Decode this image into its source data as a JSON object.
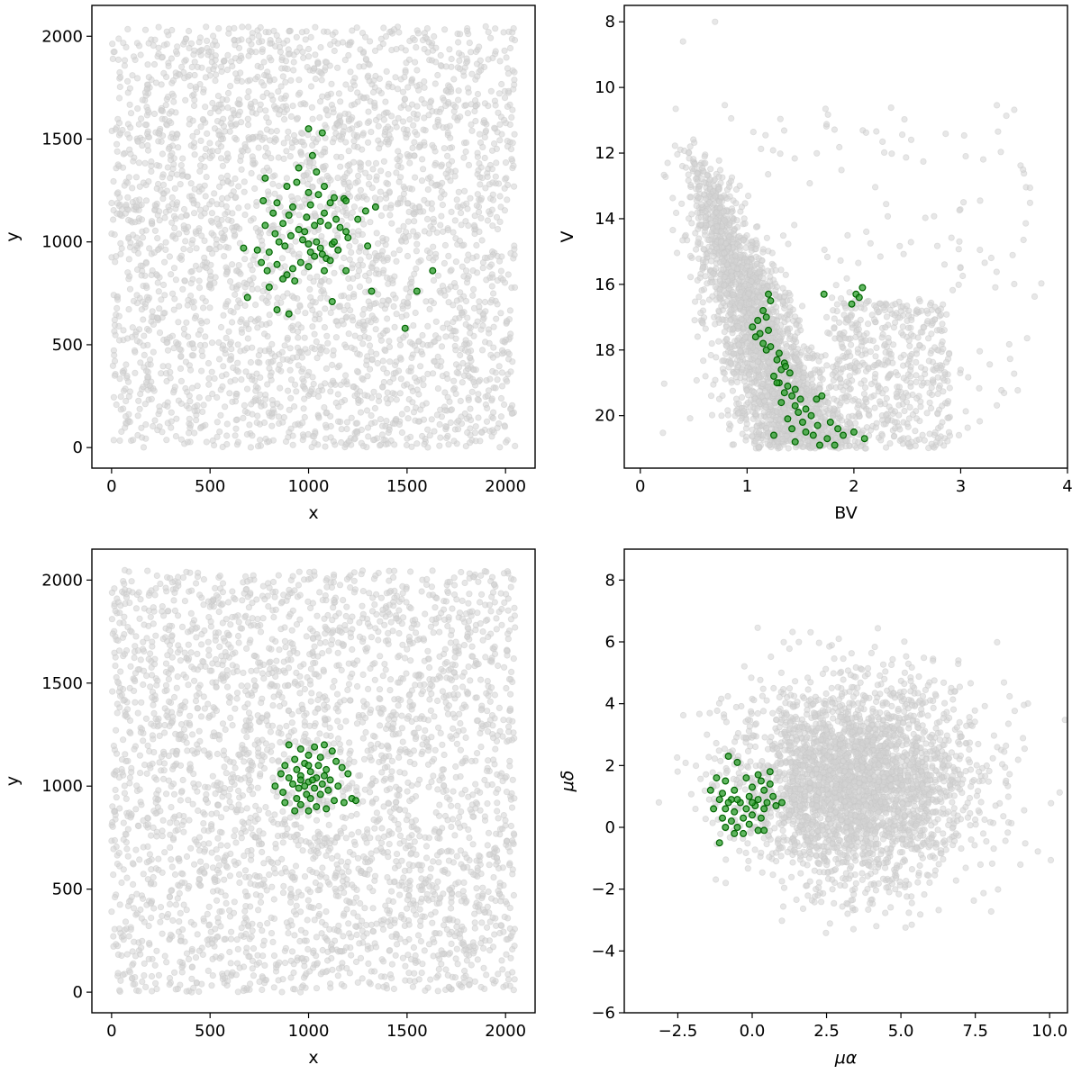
{
  "colors": {
    "background_points": "#d3d3d3",
    "members": "#008000"
  },
  "chart_data": [
    {
      "type": "scatter",
      "xlabel": "x",
      "ylabel": "y",
      "xlim": [
        -100,
        2150
      ],
      "ylim": [
        -100,
        2150
      ],
      "invert_y": false,
      "xticks": [
        0,
        500,
        1000,
        1500,
        2000
      ],
      "yticks": [
        0,
        500,
        1000,
        1500,
        2000
      ],
      "xtick_labels": [
        "0",
        "500",
        "1000",
        "1500",
        "2000"
      ],
      "ytick_labels": [
        "0",
        "500",
        "1000",
        "1500",
        "2000"
      ],
      "background": {
        "count": 3000,
        "distribution": "uniform",
        "x_range": [
          0,
          2048
        ],
        "y_range": [
          0,
          2048
        ]
      },
      "members": [
        [
          1000,
          1550
        ],
        [
          1070,
          1530
        ],
        [
          1020,
          1420
        ],
        [
          950,
          1360
        ],
        [
          1040,
          1340
        ],
        [
          1080,
          1270
        ],
        [
          940,
          1290
        ],
        [
          780,
          1310
        ],
        [
          890,
          1270
        ],
        [
          1000,
          1240
        ],
        [
          1050,
          1230
        ],
        [
          1130,
          1215
        ],
        [
          1180,
          1210
        ],
        [
          1190,
          1200
        ],
        [
          770,
          1200
        ],
        [
          840,
          1190
        ],
        [
          920,
          1170
        ],
        [
          1010,
          1180
        ],
        [
          1110,
          1190
        ],
        [
          1340,
          1170
        ],
        [
          1290,
          1150
        ],
        [
          820,
          1140
        ],
        [
          900,
          1130
        ],
        [
          990,
          1120
        ],
        [
          1060,
          1100
        ],
        [
          1140,
          1110
        ],
        [
          1250,
          1110
        ],
        [
          780,
          1080
        ],
        [
          870,
          1090
        ],
        [
          950,
          1060
        ],
        [
          1030,
          1080
        ],
        [
          1100,
          1080
        ],
        [
          1160,
          1070
        ],
        [
          1190,
          1050
        ],
        [
          830,
          1040
        ],
        [
          910,
          1030
        ],
        [
          970,
          1010
        ],
        [
          1040,
          1000
        ],
        [
          1120,
          990
        ],
        [
          1200,
          1020
        ],
        [
          1300,
          980
        ],
        [
          670,
          970
        ],
        [
          740,
          960
        ],
        [
          800,
          950
        ],
        [
          880,
          980
        ],
        [
          1000,
          990
        ],
        [
          1060,
          970
        ],
        [
          1150,
          960
        ],
        [
          1010,
          950
        ],
        [
          1070,
          940
        ],
        [
          1090,
          920
        ],
        [
          1110,
          910
        ],
        [
          760,
          900
        ],
        [
          840,
          890
        ],
        [
          920,
          870
        ],
        [
          1000,
          880
        ],
        [
          1080,
          860
        ],
        [
          1190,
          860
        ],
        [
          790,
          860
        ],
        [
          890,
          840
        ],
        [
          870,
          820
        ],
        [
          930,
          810
        ],
        [
          800,
          780
        ],
        [
          1320,
          760
        ],
        [
          1550,
          760
        ],
        [
          1630,
          860
        ],
        [
          690,
          730
        ],
        [
          1120,
          710
        ],
        [
          840,
          670
        ],
        [
          900,
          650
        ],
        [
          1490,
          580
        ],
        [
          960,
          900
        ],
        [
          1030,
          930
        ],
        [
          1130,
          1000
        ],
        [
          850,
          1000
        ],
        [
          1080,
          1140
        ],
        [
          980,
          1050
        ]
      ]
    },
    {
      "type": "scatter",
      "xlabel": "BV",
      "ylabel": "V",
      "xlim": [
        -0.15,
        4.0
      ],
      "ylim": [
        21.6,
        7.5
      ],
      "invert_y": true,
      "xticks": [
        0,
        1,
        2,
        3,
        4
      ],
      "yticks": [
        8,
        10,
        12,
        14,
        16,
        18,
        20
      ],
      "xtick_labels": [
        "0",
        "1",
        "2",
        "3",
        "4"
      ],
      "ytick_labels": [
        "8",
        "10",
        "12",
        "14",
        "16",
        "18",
        "20"
      ],
      "background": {
        "count": 3000,
        "distribution": "main-sequence band with red-giant scatter",
        "x_range": [
          0.1,
          3.8
        ],
        "y_range": [
          8.0,
          21.0
        ]
      },
      "members": [
        [
          1.2,
          16.3
        ],
        [
          1.22,
          16.5
        ],
        [
          1.15,
          16.8
        ],
        [
          1.18,
          17.0
        ],
        [
          1.1,
          17.1
        ],
        [
          1.05,
          17.3
        ],
        [
          1.12,
          17.5
        ],
        [
          1.2,
          17.4
        ],
        [
          1.08,
          17.6
        ],
        [
          1.15,
          17.8
        ],
        [
          1.18,
          18.0
        ],
        [
          1.22,
          17.9
        ],
        [
          1.3,
          18.1
        ],
        [
          1.28,
          18.3
        ],
        [
          1.35,
          18.4
        ],
        [
          1.32,
          18.6
        ],
        [
          1.4,
          18.7
        ],
        [
          1.25,
          18.8
        ],
        [
          1.3,
          19.0
        ],
        [
          1.38,
          19.1
        ],
        [
          1.45,
          19.2
        ],
        [
          1.35,
          19.3
        ],
        [
          1.42,
          19.4
        ],
        [
          1.5,
          19.5
        ],
        [
          1.32,
          19.6
        ],
        [
          1.45,
          19.7
        ],
        [
          1.55,
          19.8
        ],
        [
          1.65,
          19.5
        ],
        [
          1.7,
          19.4
        ],
        [
          1.48,
          19.9
        ],
        [
          1.6,
          20.0
        ],
        [
          1.38,
          20.1
        ],
        [
          1.52,
          20.2
        ],
        [
          1.66,
          20.3
        ],
        [
          1.78,
          20.2
        ],
        [
          1.85,
          20.4
        ],
        [
          1.42,
          20.4
        ],
        [
          1.55,
          20.5
        ],
        [
          1.62,
          20.6
        ],
        [
          1.75,
          20.7
        ],
        [
          1.9,
          20.6
        ],
        [
          2.0,
          20.5
        ],
        [
          2.1,
          20.7
        ],
        [
          1.45,
          20.8
        ],
        [
          1.68,
          20.9
        ],
        [
          1.82,
          20.9
        ],
        [
          1.25,
          20.6
        ],
        [
          1.72,
          16.3
        ],
        [
          1.98,
          16.6
        ],
        [
          2.02,
          16.3
        ],
        [
          2.08,
          16.1
        ],
        [
          2.05,
          16.4
        ],
        [
          1.28,
          19.0
        ],
        [
          1.36,
          18.5
        ]
      ]
    },
    {
      "type": "scatter",
      "xlabel": "x",
      "ylabel": "y",
      "xlim": [
        -100,
        2150
      ],
      "ylim": [
        -100,
        2150
      ],
      "invert_y": false,
      "xticks": [
        0,
        500,
        1000,
        1500,
        2000
      ],
      "yticks": [
        0,
        500,
        1000,
        1500,
        2000
      ],
      "xtick_labels": [
        "0",
        "500",
        "1000",
        "1500",
        "2000"
      ],
      "ytick_labels": [
        "0",
        "500",
        "1000",
        "1500",
        "2000"
      ],
      "background": {
        "count": 3000,
        "distribution": "uniform",
        "x_range": [
          0,
          2048
        ],
        "y_range": [
          0,
          2048
        ]
      },
      "members": [
        [
          900,
          1200
        ],
        [
          960,
          1180
        ],
        [
          1030,
          1190
        ],
        [
          1080,
          1200
        ],
        [
          1120,
          1170
        ],
        [
          1000,
          1150
        ],
        [
          930,
          1130
        ],
        [
          1060,
          1140
        ],
        [
          1140,
          1120
        ],
        [
          880,
          1100
        ],
        [
          980,
          1110
        ],
        [
          1050,
          1100
        ],
        [
          1170,
          1090
        ],
        [
          940,
          1080
        ],
        [
          1010,
          1070
        ],
        [
          1090,
          1080
        ],
        [
          1200,
          1060
        ],
        [
          860,
          1060
        ],
        [
          900,
          1040
        ],
        [
          960,
          1050
        ],
        [
          1040,
          1040
        ],
        [
          1110,
          1030
        ],
        [
          1000,
          1020
        ],
        [
          1070,
          1010
        ],
        [
          1150,
          1000
        ],
        [
          920,
          1010
        ],
        [
          830,
          1000
        ],
        [
          950,
          990
        ],
        [
          1030,
          990
        ],
        [
          1100,
          980
        ],
        [
          870,
          970
        ],
        [
          990,
          960
        ],
        [
          1060,
          960
        ],
        [
          1220,
          940
        ],
        [
          1240,
          930
        ],
        [
          940,
          940
        ],
        [
          1010,
          940
        ],
        [
          1130,
          930
        ],
        [
          1180,
          920
        ],
        [
          880,
          920
        ],
        [
          960,
          910
        ],
        [
          1040,
          900
        ],
        [
          1090,
          890
        ],
        [
          930,
          880
        ],
        [
          1000,
          880
        ],
        [
          980,
          1000
        ],
        [
          1020,
          1030
        ],
        [
          1080,
          1050
        ],
        [
          960,
          1030
        ],
        [
          1000,
          1100
        ]
      ]
    },
    {
      "type": "scatter",
      "xlabel": "μα",
      "ylabel": "μδ",
      "xlim": [
        -4.3,
        10.6
      ],
      "ylim": [
        -6.0,
        9.0
      ],
      "invert_y": false,
      "xticks": [
        -2.5,
        0.0,
        2.5,
        5.0,
        7.5,
        10.0
      ],
      "yticks": [
        -6,
        -4,
        -2,
        0,
        2,
        4,
        6,
        8
      ],
      "xtick_labels": [
        "−2.5",
        "0.0",
        "2.5",
        "5.0",
        "7.5",
        "10.0"
      ],
      "ytick_labels": [
        "−6",
        "−4",
        "−2",
        "0",
        "2",
        "4",
        "6",
        "8"
      ],
      "background": {
        "count": 3000,
        "distribution": "gaussian",
        "center": [
          3.5,
          1.5
        ],
        "sigma": [
          2.0,
          1.6
        ]
      },
      "members": [
        [
          -0.8,
          2.3
        ],
        [
          -0.5,
          2.1
        ],
        [
          0.2,
          1.7
        ],
        [
          0.6,
          1.8
        ],
        [
          -1.2,
          1.6
        ],
        [
          -0.9,
          1.5
        ],
        [
          -0.2,
          1.6
        ],
        [
          0.3,
          1.5
        ],
        [
          -1.4,
          1.2
        ],
        [
          -1.0,
          1.1
        ],
        [
          -0.6,
          1.2
        ],
        [
          0.0,
          1.3
        ],
        [
          0.4,
          1.2
        ],
        [
          0.7,
          1.0
        ],
        [
          -1.1,
          0.9
        ],
        [
          -0.7,
          0.9
        ],
        [
          -0.4,
          0.8
        ],
        [
          -0.1,
          1.0
        ],
        [
          0.2,
          0.9
        ],
        [
          0.5,
          0.8
        ],
        [
          1.0,
          0.8
        ],
        [
          -1.3,
          0.6
        ],
        [
          -0.9,
          0.6
        ],
        [
          -0.6,
          0.5
        ],
        [
          -0.2,
          0.6
        ],
        [
          0.1,
          0.7
        ],
        [
          0.4,
          0.6
        ],
        [
          0.8,
          0.7
        ],
        [
          -1.0,
          0.3
        ],
        [
          -0.7,
          0.2
        ],
        [
          -0.3,
          0.3
        ],
        [
          0.0,
          0.4
        ],
        [
          0.3,
          0.3
        ],
        [
          -0.9,
          0.0
        ],
        [
          -0.5,
          0.0
        ],
        [
          -0.1,
          0.1
        ],
        [
          0.2,
          -0.1
        ],
        [
          0.4,
          -0.1
        ],
        [
          -0.6,
          -0.2
        ],
        [
          -0.3,
          -0.2
        ],
        [
          -1.1,
          -0.5
        ],
        [
          -0.5,
          0.9
        ],
        [
          0.0,
          0.8
        ],
        [
          -0.8,
          0.8
        ],
        [
          0.6,
          1.4
        ]
      ]
    }
  ]
}
